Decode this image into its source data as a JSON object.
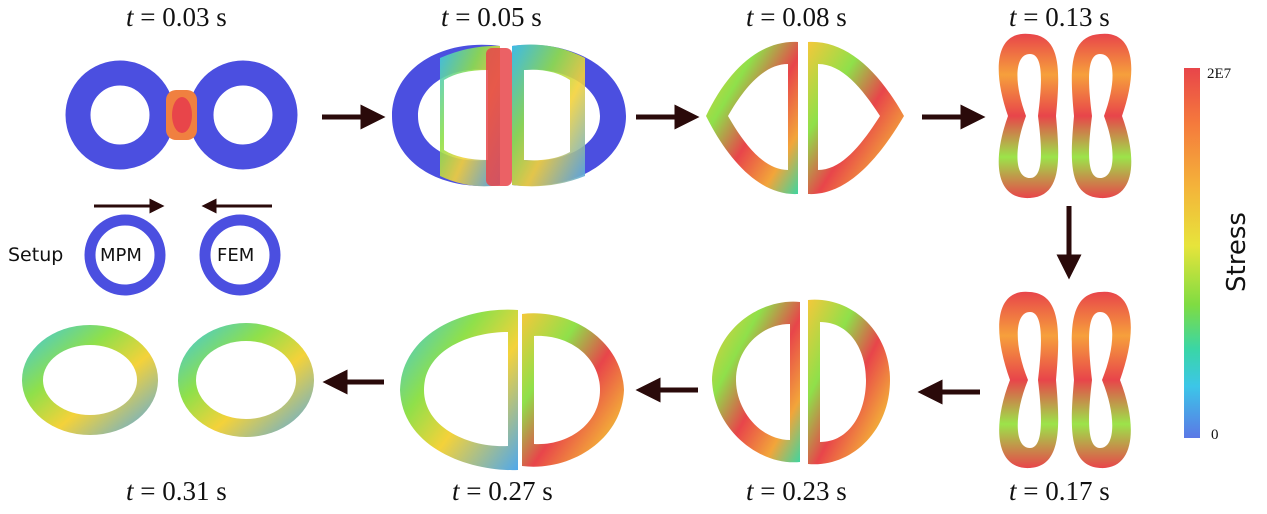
{
  "time_labels": {
    "t1": "= 0.03 s",
    "t2": "= 0.05 s",
    "t3": "= 0.08 s",
    "t4": "= 0.13 s",
    "t5": "= 0.17 s",
    "t6": "= 0.23 s",
    "t7": "= 0.27 s",
    "t8": "= 0.31 s",
    "var": "t"
  },
  "setup": {
    "label": "Setup",
    "left_ring": "MPM",
    "right_ring": "FEM",
    "ring_color": "#4b4fe0"
  },
  "colorbar": {
    "title": "Stress",
    "max_label": "2E7",
    "min_label": "0"
  },
  "colors": {
    "arrow": "#2a0a0a",
    "low_stress": "#4b4fe0",
    "high_stress": "#e8454a"
  }
}
